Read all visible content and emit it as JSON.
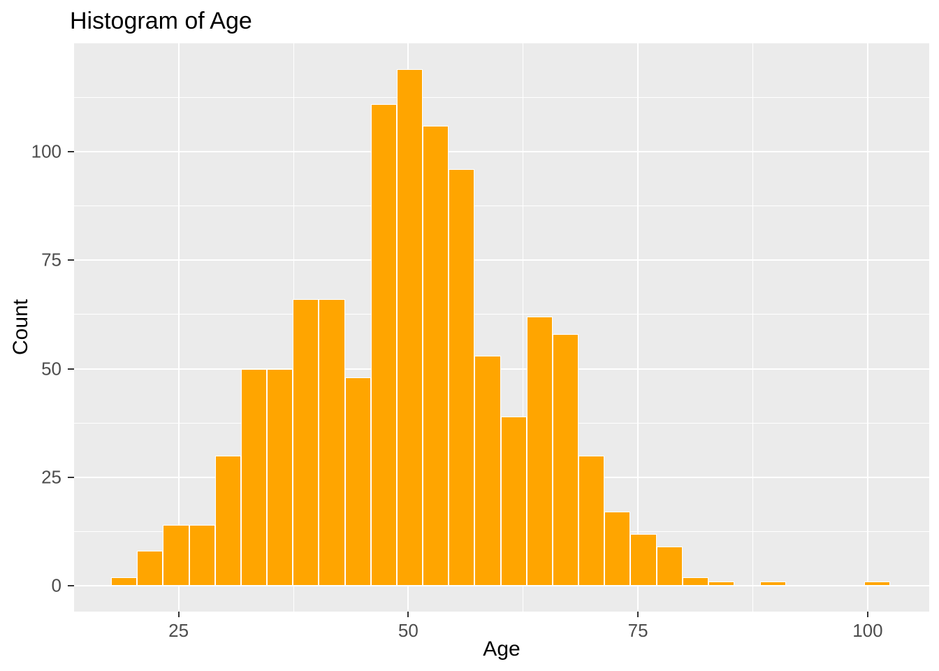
{
  "page": {
    "background": "#FFFFFF"
  },
  "chart_data": {
    "type": "bar",
    "variant": "histogram",
    "title": "Histogram of Age",
    "xlabel": "Age",
    "ylabel": "Count",
    "legend": "none",
    "grid": "on",
    "bins": {
      "start": 17.66,
      "width": 2.826
    },
    "counts": [
      2,
      8,
      14,
      14,
      30,
      50,
      50,
      66,
      66,
      48,
      111,
      119,
      106,
      96,
      53,
      39,
      62,
      58,
      30,
      17,
      12,
      9,
      2,
      1,
      0,
      1,
      0,
      0,
      0,
      1
    ],
    "x_ticks": [
      25,
      50,
      75,
      100
    ],
    "y_ticks": [
      0,
      25,
      50,
      75,
      100
    ],
    "x_minor_gridlines": [
      37.5,
      62.5,
      87.5
    ],
    "y_minor_gridlines": [
      12.5,
      37.5,
      62.5,
      87.5,
      112.5
    ],
    "xlim": [
      13.62,
      106.7
    ],
    "ylim": [
      -5.95,
      124.95
    ],
    "colors": {
      "bar_fill": "#FFA500",
      "bar_border": "#FFFFFF",
      "panel_bg": "#EBEBEB",
      "gridline": "#FFFFFF",
      "tick_mark": "#333333",
      "tick_label": "#4D4D4D",
      "title": "#000000",
      "axis_title": "#000000"
    }
  }
}
